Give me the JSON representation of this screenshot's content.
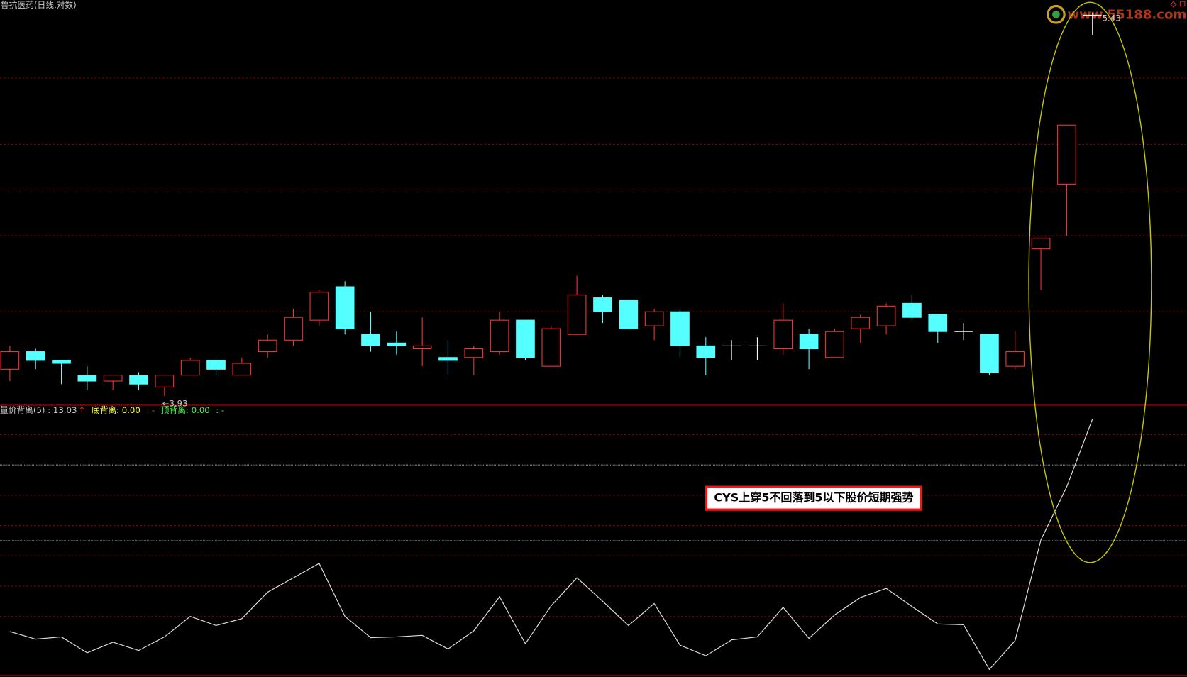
{
  "chart_data": [
    {
      "type": "candlestick",
      "title": "鲁抗医药(日线,对数)",
      "log": true,
      "ylim": [
        3.9,
        5.49
      ],
      "grid_levels": [
        5.14,
        4.86,
        4.68,
        4.5,
        4.22
      ],
      "grid": true,
      "up_color": "#ff3232",
      "down_color": "#54ffff",
      "flat_color": "#ffffff",
      "open": [
        4.02,
        4.08,
        4.05,
        4.0,
        3.98,
        4.0,
        3.96,
        4.0,
        4.05,
        4.0,
        4.08,
        4.12,
        4.19,
        4.31,
        4.14,
        4.11,
        4.09,
        4.06,
        4.06,
        4.08,
        4.19,
        4.03,
        4.14,
        4.27,
        4.26,
        4.17,
        4.22,
        4.1,
        4.1,
        4.1,
        4.09,
        4.14,
        4.06,
        4.16,
        4.17,
        4.25,
        4.21,
        4.15,
        4.14,
        4.03,
        4.45,
        4.7,
        5.42
      ],
      "high": [
        4.1,
        4.09,
        4.05,
        4.03,
        4.0,
        4.01,
        4.0,
        4.06,
        4.05,
        4.06,
        4.14,
        4.23,
        4.3,
        4.33,
        4.22,
        4.15,
        4.2,
        4.12,
        4.1,
        4.22,
        4.19,
        4.17,
        4.35,
        4.28,
        4.26,
        4.23,
        4.23,
        4.13,
        4.12,
        4.13,
        4.25,
        4.16,
        4.16,
        4.21,
        4.25,
        4.28,
        4.21,
        4.18,
        4.14,
        4.15,
        4.49,
        4.94,
        5.43
      ],
      "low": [
        3.98,
        4.02,
        3.97,
        3.95,
        3.95,
        3.95,
        3.93,
        4.0,
        4.0,
        4.0,
        4.06,
        4.1,
        4.17,
        4.14,
        4.08,
        4.07,
        4.03,
        4.0,
        4.0,
        4.07,
        4.05,
        4.03,
        4.14,
        4.18,
        4.16,
        4.12,
        4.06,
        4.0,
        4.05,
        4.05,
        4.07,
        4.02,
        4.06,
        4.11,
        4.14,
        4.19,
        4.11,
        4.12,
        4.0,
        4.02,
        4.3,
        4.5,
        5.33
      ],
      "close": [
        4.08,
        4.05,
        4.04,
        3.98,
        4.0,
        3.97,
        4.0,
        4.05,
        4.02,
        4.04,
        4.12,
        4.2,
        4.29,
        4.16,
        4.1,
        4.1,
        4.1,
        4.05,
        4.09,
        4.19,
        4.06,
        4.16,
        4.28,
        4.22,
        4.16,
        4.22,
        4.1,
        4.06,
        4.1,
        4.1,
        4.19,
        4.09,
        4.15,
        4.2,
        4.24,
        4.2,
        4.15,
        4.15,
        4.01,
        4.08,
        4.49,
        4.94,
        5.42
      ],
      "low_label": "←3.93",
      "high_label": "5.43",
      "watermark": "www.55188.com"
    },
    {
      "type": "line",
      "ylim": [
        -3.9,
        13.95
      ],
      "grid_levels": [
        12,
        8,
        6,
        4,
        2,
        0
      ],
      "ref_levels": [
        10,
        5
      ],
      "grid": true,
      "series": [
        {
          "name": "量价背离(5)",
          "color": "#e0e0e0",
          "values": [
            -1.0,
            -1.5,
            -1.35,
            -2.4,
            -1.7,
            -2.25,
            -1.35,
            0,
            -0.6,
            -0.15,
            1.6,
            2.55,
            3.5,
            0,
            -1.4,
            -1.35,
            -1.25,
            -2.15,
            -0.95,
            1.3,
            -1.8,
            0.7,
            2.55,
            1.0,
            -0.6,
            0.85,
            -1.9,
            -2.6,
            -1.55,
            -1.35,
            0.6,
            -1.45,
            0.1,
            1.25,
            1.85,
            0.65,
            -0.5,
            -0.55,
            -3.5,
            -1.6,
            5.05,
            8.55,
            13.03
          ]
        }
      ],
      "legend": [
        {
          "text": "量价背离(5)  : 13.03",
          "color": "#c8c8c8"
        },
        {
          "text": "↑",
          "color": "#ff2020"
        },
        {
          "text": "底背离: 0.00",
          "color": "#ffff40"
        },
        {
          "text": ": -",
          "color": "#c07030"
        },
        {
          "text": "顶背离: 0.00",
          "color": "#40ff40"
        },
        {
          "text": ": -",
          "color": "#40ff40"
        }
      ],
      "annotation": "CYS上穿5不回落到5以下股价短期强势"
    }
  ]
}
